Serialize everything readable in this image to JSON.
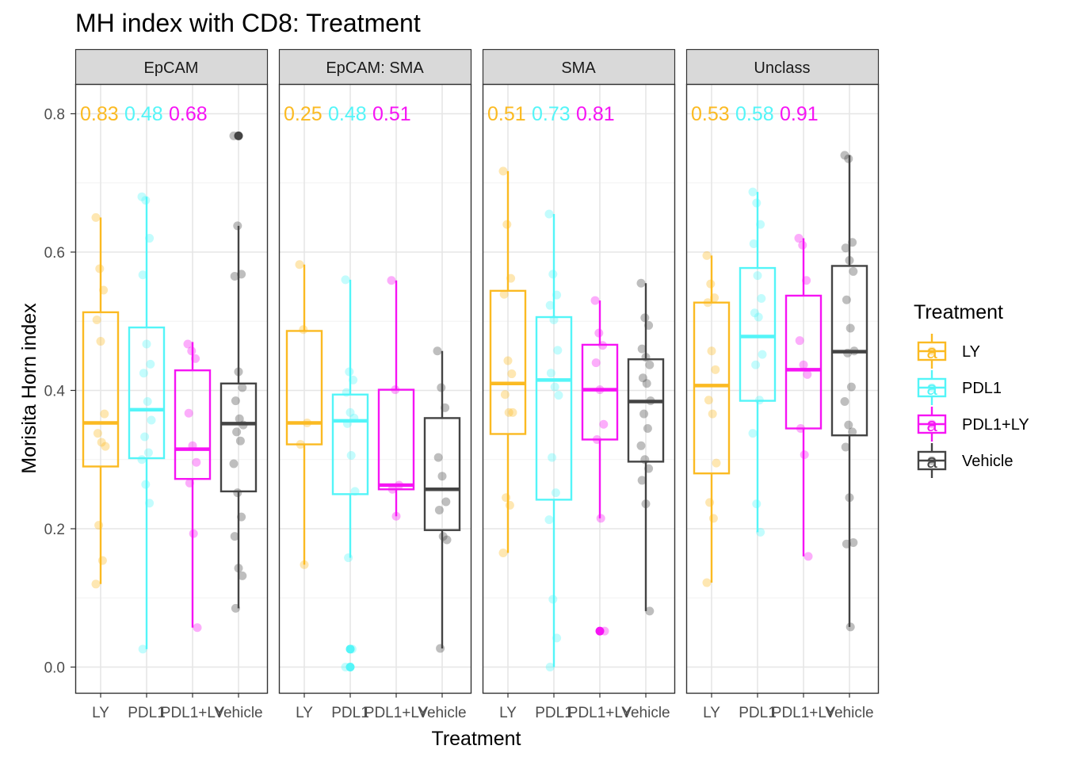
{
  "chart_data": {
    "type": "box",
    "title": "MH index with CD8: Treatment",
    "xlabel": "Treatment",
    "ylabel": "Morisita Horn index",
    "ylim": [
      -0.04,
      0.86
    ],
    "yticks": [
      0.0,
      0.2,
      0.4,
      0.6,
      0.8
    ],
    "ytick_labels": [
      "0.0",
      "0.2",
      "0.4",
      "0.6",
      "0.8"
    ],
    "categories": [
      "LY",
      "PDL1",
      "PDL1+LY",
      "Vehicle"
    ],
    "grid": true,
    "legend": {
      "title": "Treatment",
      "position": "right",
      "key_label": "a",
      "items": [
        {
          "label": "LY",
          "color": "#FBBA22"
        },
        {
          "label": "PDL1",
          "color": "#54F5F8"
        },
        {
          "label": "PDL1+LY",
          "color": "#F614F4"
        },
        {
          "label": "Vehicle",
          "color": "#444444"
        }
      ]
    },
    "colors": {
      "LY": "#FBBA22",
      "PDL1": "#54F5F8",
      "PDL1+LY": "#F614F4",
      "Vehicle": "#444444"
    },
    "panels": [
      {
        "name": "EpCAM",
        "annotations": [
          {
            "text": "0.83",
            "color": "#FBBA22"
          },
          {
            "text": "0.48",
            "color": "#54F5F8"
          },
          {
            "text": "0.68",
            "color": "#F614F4"
          }
        ],
        "boxes": [
          {
            "group": "LY",
            "min": 0.12,
            "q1": 0.29,
            "median": 0.353,
            "q3": 0.513,
            "max": 0.65,
            "outliers": [],
            "points": [
              0.65,
              0.576,
              0.545,
              0.502,
              0.471,
              0.366,
              0.338,
              0.325,
              0.319,
              0.205,
              0.154,
              0.12
            ]
          },
          {
            "group": "PDL1",
            "min": 0.026,
            "q1": 0.302,
            "median": 0.372,
            "q3": 0.491,
            "max": 0.68,
            "outliers": [],
            "points": [
              0.68,
              0.675,
              0.62,
              0.567,
              0.467,
              0.438,
              0.425,
              0.384,
              0.357,
              0.333,
              0.31,
              0.3,
              0.264,
              0.237,
              0.026
            ]
          },
          {
            "group": "PDL1+LY",
            "min": 0.057,
            "q1": 0.272,
            "median": 0.315,
            "q3": 0.429,
            "max": 0.47,
            "outliers": [],
            "points": [
              0.467,
              0.457,
              0.446,
              0.367,
              0.32,
              0.296,
              0.266,
              0.193,
              0.057
            ]
          },
          {
            "group": "Vehicle",
            "min": 0.085,
            "q1": 0.254,
            "median": 0.352,
            "q3": 0.41,
            "max": 0.638,
            "outliers": [
              0.768
            ],
            "points": [
              0.768,
              0.638,
              0.568,
              0.565,
              0.427,
              0.404,
              0.385,
              0.359,
              0.35,
              0.34,
              0.327,
              0.294,
              0.252,
              0.217,
              0.189,
              0.143,
              0.132,
              0.085
            ]
          }
        ]
      },
      {
        "name": "EpCAM: SMA",
        "annotations": [
          {
            "text": "0.25",
            "color": "#FBBA22"
          },
          {
            "text": "0.48",
            "color": "#54F5F8"
          },
          {
            "text": "0.51",
            "color": "#F614F4"
          }
        ],
        "boxes": [
          {
            "group": "LY",
            "min": 0.148,
            "q1": 0.322,
            "median": 0.353,
            "q3": 0.486,
            "max": 0.582,
            "outliers": [],
            "points": [
              0.582,
              0.488,
              0.353,
              0.322,
              0.148
            ]
          },
          {
            "group": "PDL1",
            "min": 0.158,
            "q1": 0.25,
            "median": 0.356,
            "q3": 0.394,
            "max": 0.56,
            "outliers": [
              0.026,
              0.0
            ],
            "points": [
              0.56,
              0.427,
              0.415,
              0.397,
              0.368,
              0.36,
              0.352,
              0.306,
              0.254,
              0.158,
              0.026,
              0.0
            ]
          },
          {
            "group": "PDL1+LY",
            "min": 0.218,
            "q1": 0.257,
            "median": 0.263,
            "q3": 0.401,
            "max": 0.559,
            "outliers": [],
            "points": [
              0.559,
              0.401,
              0.263,
              0.257,
              0.218
            ]
          },
          {
            "group": "Vehicle",
            "min": 0.027,
            "q1": 0.198,
            "median": 0.257,
            "q3": 0.36,
            "max": 0.457,
            "outliers": [],
            "points": [
              0.457,
              0.404,
              0.375,
              0.303,
              0.276,
              0.239,
              0.227,
              0.189,
              0.184,
              0.027
            ]
          }
        ]
      },
      {
        "name": "SMA",
        "annotations": [
          {
            "text": "0.51",
            "color": "#FBBA22"
          },
          {
            "text": "0.73",
            "color": "#54F5F8"
          },
          {
            "text": "0.81",
            "color": "#F614F4"
          }
        ],
        "boxes": [
          {
            "group": "LY",
            "min": 0.165,
            "q1": 0.337,
            "median": 0.41,
            "q3": 0.544,
            "max": 0.717,
            "outliers": [],
            "points": [
              0.717,
              0.64,
              0.562,
              0.539,
              0.443,
              0.424,
              0.394,
              0.368,
              0.368,
              0.245,
              0.234,
              0.165
            ]
          },
          {
            "group": "PDL1",
            "min": 0.0,
            "q1": 0.242,
            "median": 0.415,
            "q3": 0.506,
            "max": 0.655,
            "outliers": [],
            "points": [
              0.655,
              0.568,
              0.538,
              0.523,
              0.502,
              0.458,
              0.425,
              0.405,
              0.393,
              0.303,
              0.252,
              0.213,
              0.098,
              0.042,
              0.0
            ]
          },
          {
            "group": "PDL1+LY",
            "min": 0.215,
            "q1": 0.329,
            "median": 0.401,
            "q3": 0.466,
            "max": 0.53,
            "outliers": [
              0.052
            ],
            "points": [
              0.53,
              0.483,
              0.465,
              0.44,
              0.401,
              0.351,
              0.329,
              0.215,
              0.052
            ]
          },
          {
            "group": "Vehicle",
            "min": 0.081,
            "q1": 0.297,
            "median": 0.384,
            "q3": 0.445,
            "max": 0.555,
            "outliers": [],
            "points": [
              0.555,
              0.505,
              0.494,
              0.46,
              0.448,
              0.437,
              0.418,
              0.41,
              0.385,
              0.366,
              0.345,
              0.32,
              0.3,
              0.287,
              0.27,
              0.236,
              0.081
            ]
          }
        ]
      },
      {
        "name": "Unclass",
        "annotations": [
          {
            "text": "0.53",
            "color": "#FBBA22"
          },
          {
            "text": "0.58",
            "color": "#54F5F8"
          },
          {
            "text": "0.91",
            "color": "#F614F4"
          }
        ],
        "boxes": [
          {
            "group": "LY",
            "min": 0.122,
            "q1": 0.28,
            "median": 0.407,
            "q3": 0.527,
            "max": 0.595,
            "outliers": [],
            "points": [
              0.595,
              0.554,
              0.534,
              0.527,
              0.457,
              0.43,
              0.386,
              0.366,
              0.295,
              0.238,
              0.215,
              0.122
            ]
          },
          {
            "group": "PDL1",
            "min": 0.195,
            "q1": 0.385,
            "median": 0.478,
            "q3": 0.577,
            "max": 0.687,
            "outliers": [],
            "points": [
              0.687,
              0.671,
              0.64,
              0.612,
              0.566,
              0.533,
              0.512,
              0.506,
              0.452,
              0.437,
              0.386,
              0.338,
              0.236,
              0.195
            ]
          },
          {
            "group": "PDL1+LY",
            "min": 0.16,
            "q1": 0.345,
            "median": 0.43,
            "q3": 0.537,
            "max": 0.62,
            "outliers": [],
            "points": [
              0.62,
              0.61,
              0.559,
              0.472,
              0.437,
              0.423,
              0.345,
              0.307,
              0.16
            ]
          },
          {
            "group": "Vehicle",
            "min": 0.058,
            "q1": 0.335,
            "median": 0.456,
            "q3": 0.58,
            "max": 0.74,
            "outliers": [],
            "points": [
              0.74,
              0.735,
              0.614,
              0.606,
              0.588,
              0.572,
              0.531,
              0.49,
              0.457,
              0.454,
              0.405,
              0.384,
              0.35,
              0.34,
              0.318,
              0.245,
              0.18,
              0.178,
              0.058
            ]
          }
        ]
      }
    ]
  }
}
